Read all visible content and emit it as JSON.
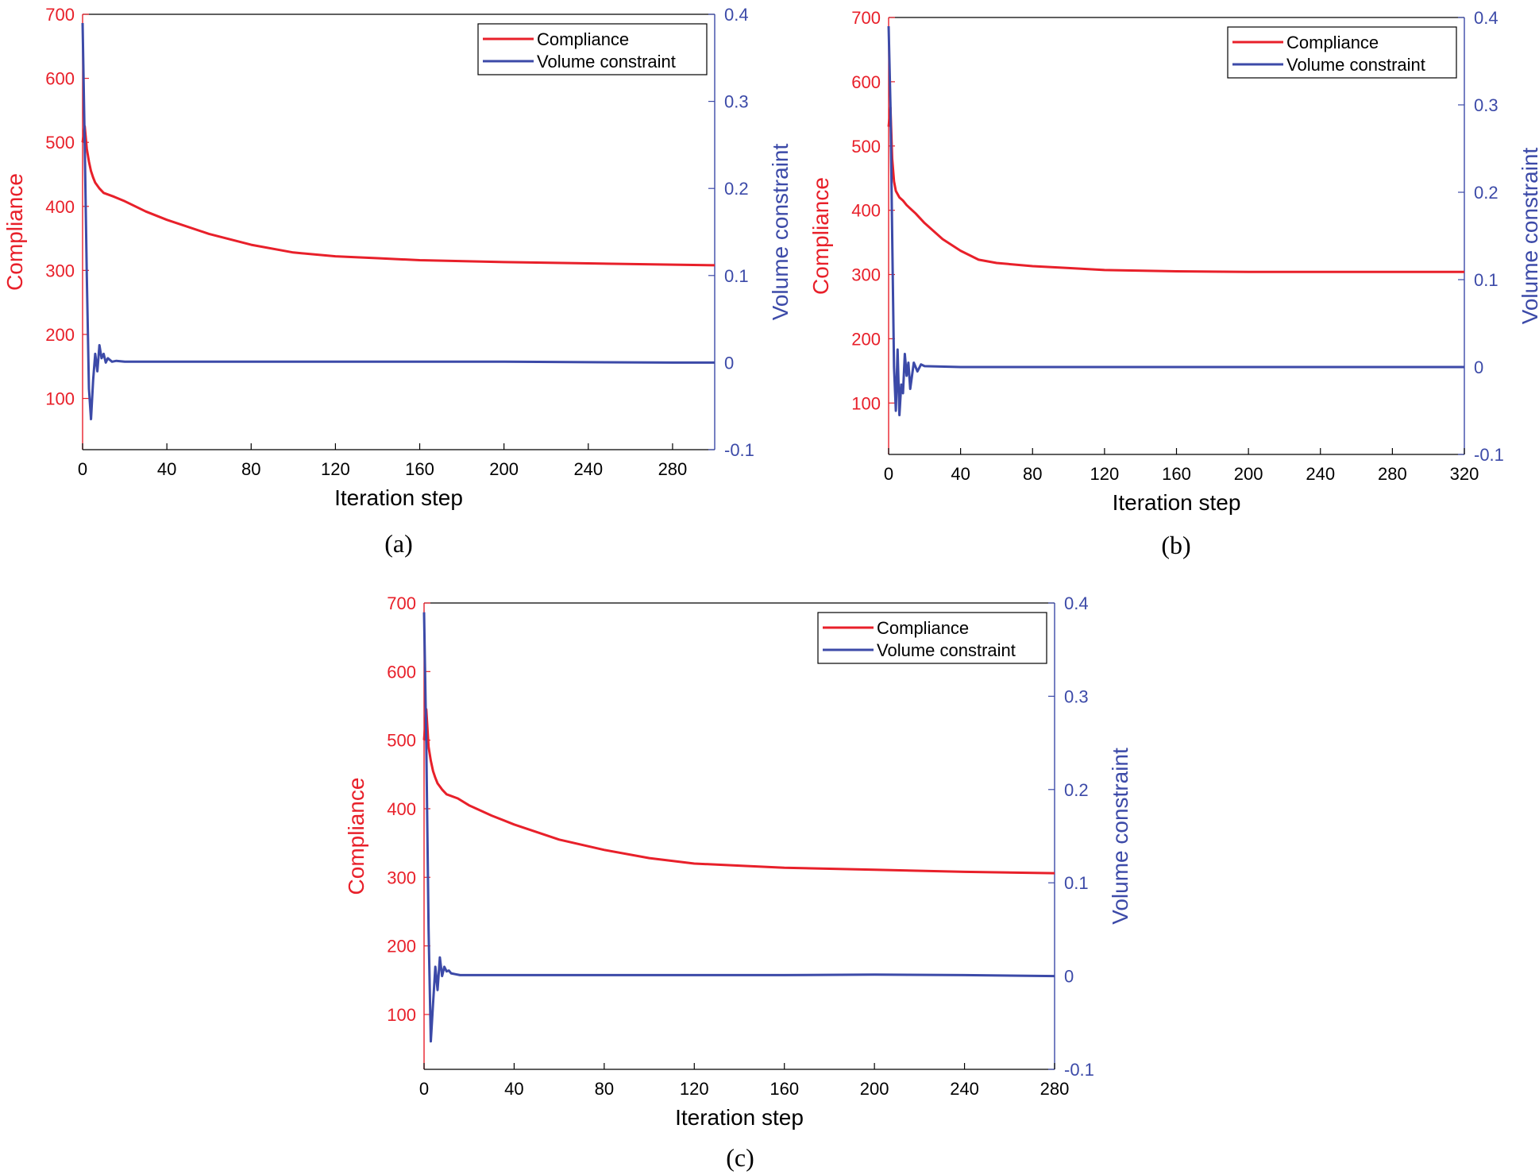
{
  "chart_data": [
    {
      "type": "line",
      "caption": "(a)",
      "xlabel": "Iteration step",
      "ylabel_left": "Compliance",
      "ylabel_right": "Volume constraint",
      "xlim": [
        0,
        300
      ],
      "xticks": [
        "0",
        "40",
        "80",
        "120",
        "160",
        "200",
        "240",
        "280"
      ],
      "ylim_left": [
        20,
        700
      ],
      "yticks_left": [
        "100",
        "200",
        "300",
        "400",
        "500",
        "600",
        "700"
      ],
      "ylim_right": [
        -0.1,
        0.4
      ],
      "yticks_right": [
        "-0.1",
        "0",
        "0.1",
        "0.2",
        "0.3",
        "0.4"
      ],
      "colors": {
        "compliance": "#e8202a",
        "volume": "#3c4aa8"
      },
      "legend": {
        "position": "top-right",
        "entries": [
          "Compliance",
          "Volume constraint"
        ]
      },
      "series": [
        {
          "name": "Compliance",
          "axis": "left",
          "x": [
            0,
            1,
            2,
            3,
            4,
            5,
            6,
            8,
            10,
            15,
            20,
            30,
            40,
            60,
            80,
            100,
            120,
            140,
            160,
            200,
            240,
            280,
            300
          ],
          "values": [
            500,
            525,
            490,
            470,
            455,
            445,
            437,
            428,
            421,
            415,
            408,
            392,
            379,
            357,
            340,
            328,
            322,
            319,
            316,
            313,
            311,
            309,
            308
          ]
        },
        {
          "name": "Volume constraint",
          "axis": "right",
          "x": [
            0,
            1,
            2,
            3,
            4,
            5,
            6,
            7,
            8,
            9,
            10,
            11,
            12,
            14,
            16,
            20,
            40,
            80,
            120,
            160,
            200,
            240,
            280,
            300
          ],
          "values": [
            0.39,
            0.25,
            0.1,
            -0.03,
            -0.065,
            -0.02,
            0.01,
            -0.01,
            0.02,
            0.005,
            0.01,
            0.0,
            0.005,
            0.001,
            0.002,
            0.001,
            0.001,
            0.001,
            0.001,
            0.001,
            0.001,
            0.0005,
            0.0,
            0.0
          ]
        }
      ]
    },
    {
      "type": "line",
      "caption": "(b)",
      "xlabel": "Iteration step",
      "ylabel_left": "Compliance",
      "ylabel_right": "Volume constraint",
      "xlim": [
        0,
        320
      ],
      "xticks": [
        "0",
        "40",
        "80",
        "120",
        "160",
        "200",
        "240",
        "280",
        "320"
      ],
      "ylim_left": [
        20,
        700
      ],
      "yticks_left": [
        "100",
        "200",
        "300",
        "400",
        "500",
        "600",
        "700"
      ],
      "ylim_right": [
        -0.1,
        0.4
      ],
      "yticks_right": [
        "-0.1",
        "0",
        "0.1",
        "0.2",
        "0.3",
        "0.4"
      ],
      "colors": {
        "compliance": "#e8202a",
        "volume": "#3c4aa8"
      },
      "legend": {
        "position": "top-right",
        "entries": [
          "Compliance",
          "Volume constraint"
        ]
      },
      "series": [
        {
          "name": "Compliance",
          "axis": "left",
          "x": [
            0,
            1,
            2,
            3,
            4,
            6,
            8,
            10,
            15,
            20,
            30,
            40,
            50,
            60,
            80,
            100,
            120,
            160,
            200,
            240,
            280,
            320
          ],
          "values": [
            530,
            560,
            480,
            445,
            430,
            420,
            415,
            408,
            395,
            380,
            355,
            337,
            323,
            318,
            313,
            310,
            307,
            305,
            304,
            304,
            304,
            304
          ]
        },
        {
          "name": "Volume constraint",
          "axis": "right",
          "x": [
            0,
            1,
            2,
            3,
            4,
            5,
            6,
            7,
            8,
            9,
            10,
            11,
            12,
            14,
            16,
            18,
            20,
            40,
            80,
            120,
            160,
            200,
            240,
            280,
            320
          ],
          "values": [
            0.39,
            0.3,
            0.15,
            0.0,
            -0.05,
            0.02,
            -0.055,
            -0.02,
            -0.03,
            0.015,
            -0.01,
            0.005,
            -0.025,
            0.005,
            -0.005,
            0.003,
            0.001,
            0.0,
            0.0,
            0.0,
            0.0,
            0.0,
            0.0,
            0.0,
            0.0
          ]
        }
      ]
    },
    {
      "type": "line",
      "caption": "(c)",
      "xlabel": "Iteration step",
      "ylabel_left": "Compliance",
      "ylabel_right": "Volume constraint",
      "xlim": [
        0,
        280
      ],
      "xticks": [
        "0",
        "40",
        "80",
        "120",
        "160",
        "200",
        "240",
        "280"
      ],
      "ylim_left": [
        20,
        700
      ],
      "yticks_left": [
        "100",
        "200",
        "300",
        "400",
        "500",
        "600",
        "700"
      ],
      "ylim_right": [
        -0.1,
        0.4
      ],
      "yticks_right": [
        "-0.1",
        "0",
        "0.1",
        "0.2",
        "0.3",
        "0.4"
      ],
      "colors": {
        "compliance": "#e8202a",
        "volume": "#3c4aa8"
      },
      "legend": {
        "position": "top-right",
        "entries": [
          "Compliance",
          "Volume constraint"
        ]
      },
      "series": [
        {
          "name": "Compliance",
          "axis": "left",
          "x": [
            0,
            1,
            2,
            3,
            4,
            5,
            6,
            8,
            10,
            15,
            20,
            30,
            40,
            60,
            80,
            100,
            120,
            140,
            160,
            200,
            240,
            280
          ],
          "values": [
            500,
            545,
            490,
            470,
            455,
            445,
            437,
            428,
            421,
            415,
            405,
            390,
            377,
            355,
            340,
            328,
            320,
            317,
            314,
            311,
            308,
            306
          ]
        },
        {
          "name": "Volume constraint",
          "axis": "right",
          "x": [
            0,
            1,
            2,
            3,
            4,
            5,
            6,
            7,
            8,
            9,
            10,
            11,
            12,
            14,
            16,
            20,
            40,
            80,
            120,
            160,
            200,
            240,
            280
          ],
          "values": [
            0.39,
            0.25,
            0.05,
            -0.07,
            -0.03,
            0.01,
            -0.015,
            0.02,
            0.0,
            0.01,
            0.005,
            0.006,
            0.003,
            0.002,
            0.001,
            0.001,
            0.001,
            0.001,
            0.001,
            0.001,
            0.0015,
            0.001,
            0.0
          ]
        }
      ]
    }
  ]
}
